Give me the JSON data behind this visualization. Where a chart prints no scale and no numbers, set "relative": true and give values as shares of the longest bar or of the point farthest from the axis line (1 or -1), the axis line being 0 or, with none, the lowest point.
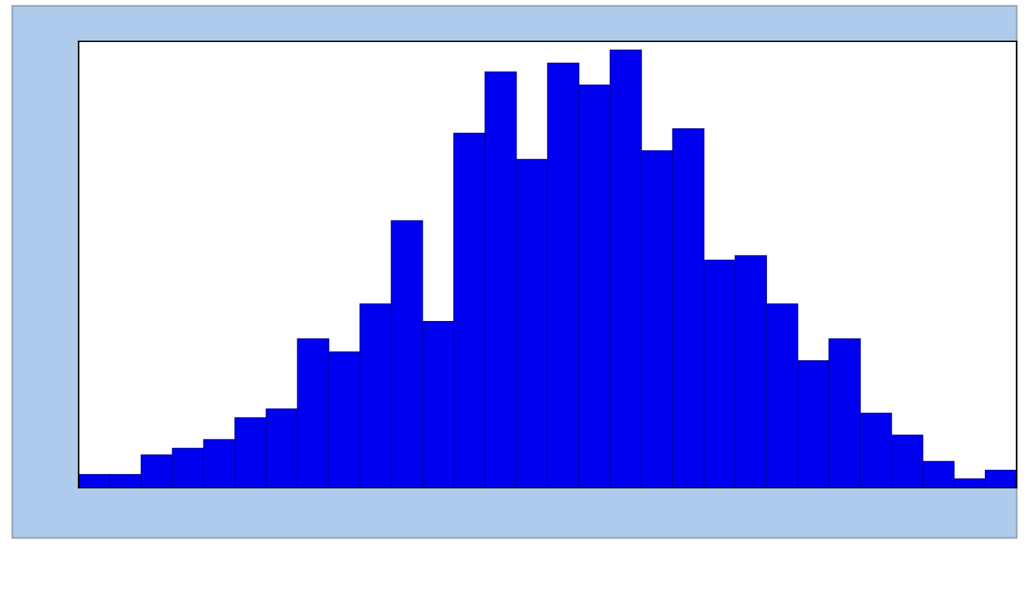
{
  "chart_data": {
    "type": "bar",
    "relative": true,
    "color": "#0000f0",
    "grid": false,
    "categories": [
      null,
      null,
      null,
      null,
      null,
      null,
      null,
      null,
      null,
      null,
      null,
      null,
      null,
      null,
      null,
      null,
      null,
      null,
      null,
      null,
      null,
      null,
      null,
      null,
      null,
      null,
      null,
      null,
      null,
      null
    ],
    "values": [
      0.03,
      0.03,
      0.075,
      0.09,
      0.11,
      0.16,
      0.18,
      0.34,
      0.31,
      0.42,
      0.61,
      0.38,
      0.81,
      0.95,
      0.75,
      0.97,
      0.92,
      1,
      0.77,
      0.82,
      0.52,
      0.53,
      0.42,
      0.29,
      0.34,
      0.17,
      0.12,
      0.06,
      0.02,
      0.04
    ]
  }
}
